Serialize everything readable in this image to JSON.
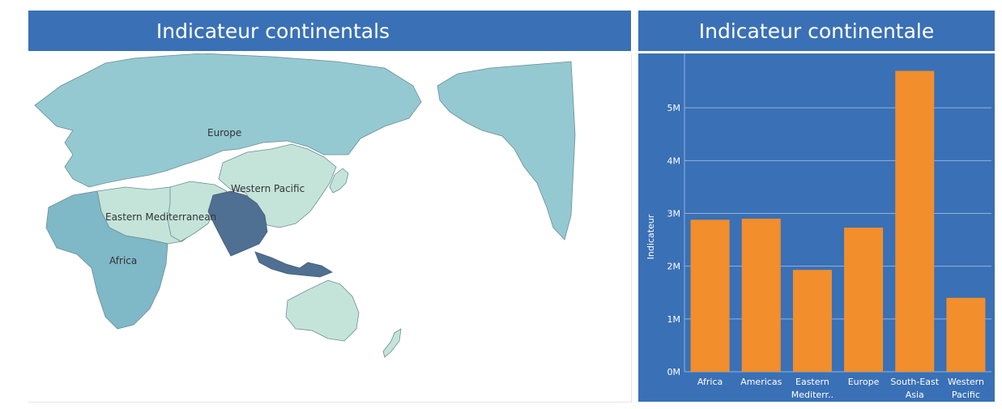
{
  "map_panel": {
    "title": "Indicateur continentals",
    "regions": [
      {
        "name": "Europe",
        "color": "#94c9d1"
      },
      {
        "name": "Western Pacific",
        "color": "#c4e4da"
      },
      {
        "name": "Eastern Mediterranean",
        "color": "#c4e4da"
      },
      {
        "name": "Africa",
        "color": "#7fb8c7"
      },
      {
        "name": "South-East Asia",
        "color": "#4f6f93"
      }
    ]
  },
  "chart_panel": {
    "title": "Indicateur continentale",
    "colors": {
      "background": "#3a70b5",
      "bar": "#f28e2b",
      "grid": "#8fb3dd",
      "text": "#ffffff"
    }
  },
  "chart_data": {
    "type": "bar",
    "title": "Indicateur continentale",
    "categories": [
      "Africa",
      "Americas",
      "Eastern Mediterr..",
      "Europe",
      "South-East Asia",
      "Western Pacific"
    ],
    "values": [
      2880000,
      2900000,
      1930000,
      2730000,
      5700000,
      1400000
    ],
    "xlabel": "",
    "ylabel": "Indicateur",
    "ylim": [
      0,
      6000000
    ],
    "yticks": [
      0,
      1000000,
      2000000,
      3000000,
      4000000,
      5000000
    ],
    "ytick_labels": [
      "0M",
      "1M",
      "2M",
      "3M",
      "4M",
      "5M"
    ],
    "grid": true
  }
}
